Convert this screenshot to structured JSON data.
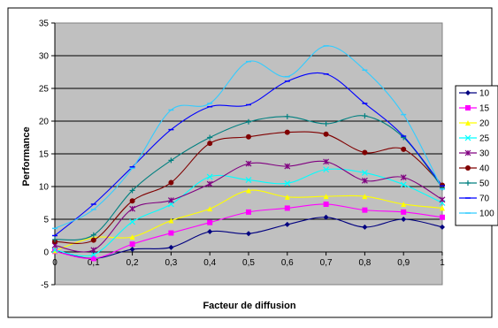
{
  "chart_data": {
    "type": "line",
    "title": "",
    "xlabel": "Facteur de diffusion",
    "ylabel": "Performance",
    "x": [
      0,
      0.1,
      0.2,
      0.3,
      0.4,
      0.5,
      0.6,
      0.7,
      0.8,
      0.9,
      1
    ],
    "x_tick_labels": [
      "0",
      "0,1",
      "0,2",
      "0,3",
      "0,4",
      "0,5",
      "0,6",
      "0,7",
      "0,8",
      "0,9",
      "1"
    ],
    "y_ticks": [
      -5,
      0,
      5,
      10,
      15,
      20,
      25,
      30,
      35
    ],
    "xlim": [
      0,
      1
    ],
    "ylim": [
      -5,
      35
    ],
    "grid": "horizontal",
    "plot_background": "#c0c0c0",
    "legend_position": "right",
    "series": [
      {
        "name": "10",
        "color": "#000080",
        "marker": "diamond",
        "values": [
          0.1,
          -1.0,
          0.4,
          0.7,
          3.1,
          2.8,
          4.2,
          5.3,
          3.8,
          5.0,
          3.8
        ]
      },
      {
        "name": "15",
        "color": "#ff00ff",
        "marker": "square",
        "values": [
          0.1,
          -1.0,
          1.2,
          2.9,
          4.5,
          6.1,
          6.7,
          7.3,
          6.4,
          6.1,
          5.3
        ]
      },
      {
        "name": "20",
        "color": "#ffff00",
        "marker": "triangle",
        "values": [
          0.2,
          2.2,
          2.3,
          4.8,
          6.6,
          9.4,
          8.4,
          8.5,
          8.5,
          7.3,
          6.7
        ]
      },
      {
        "name": "25",
        "color": "#00ffff",
        "marker": "x",
        "values": [
          0.3,
          -0.4,
          4.6,
          7.3,
          11.5,
          11.0,
          10.5,
          12.6,
          12.1,
          10.3,
          7.5
        ]
      },
      {
        "name": "30",
        "color": "#800080",
        "marker": "star",
        "values": [
          1.0,
          0.3,
          6.6,
          7.9,
          10.4,
          13.5,
          13.1,
          13.8,
          10.9,
          11.4,
          8.0
        ]
      },
      {
        "name": "40",
        "color": "#800000",
        "marker": "circle",
        "values": [
          1.6,
          1.8,
          7.8,
          10.6,
          16.6,
          17.6,
          18.3,
          18.0,
          15.2,
          15.7,
          10.2
        ]
      },
      {
        "name": "50",
        "color": "#008080",
        "marker": "plus",
        "values": [
          1.9,
          2.6,
          9.4,
          14.0,
          17.5,
          19.9,
          20.7,
          19.6,
          20.8,
          17.5,
          9.8
        ]
      },
      {
        "name": "70",
        "color": "#0000ff",
        "marker": "dash",
        "values": [
          2.5,
          7.3,
          13.0,
          18.7,
          22.2,
          22.5,
          26.1,
          27.2,
          22.7,
          17.7,
          10.1
        ]
      },
      {
        "name": "100",
        "color": "#33ccff",
        "marker": "dash",
        "values": [
          3.6,
          6.5,
          12.8,
          21.7,
          22.7,
          29.1,
          26.8,
          31.5,
          27.8,
          21.0,
          9.6
        ]
      }
    ]
  }
}
